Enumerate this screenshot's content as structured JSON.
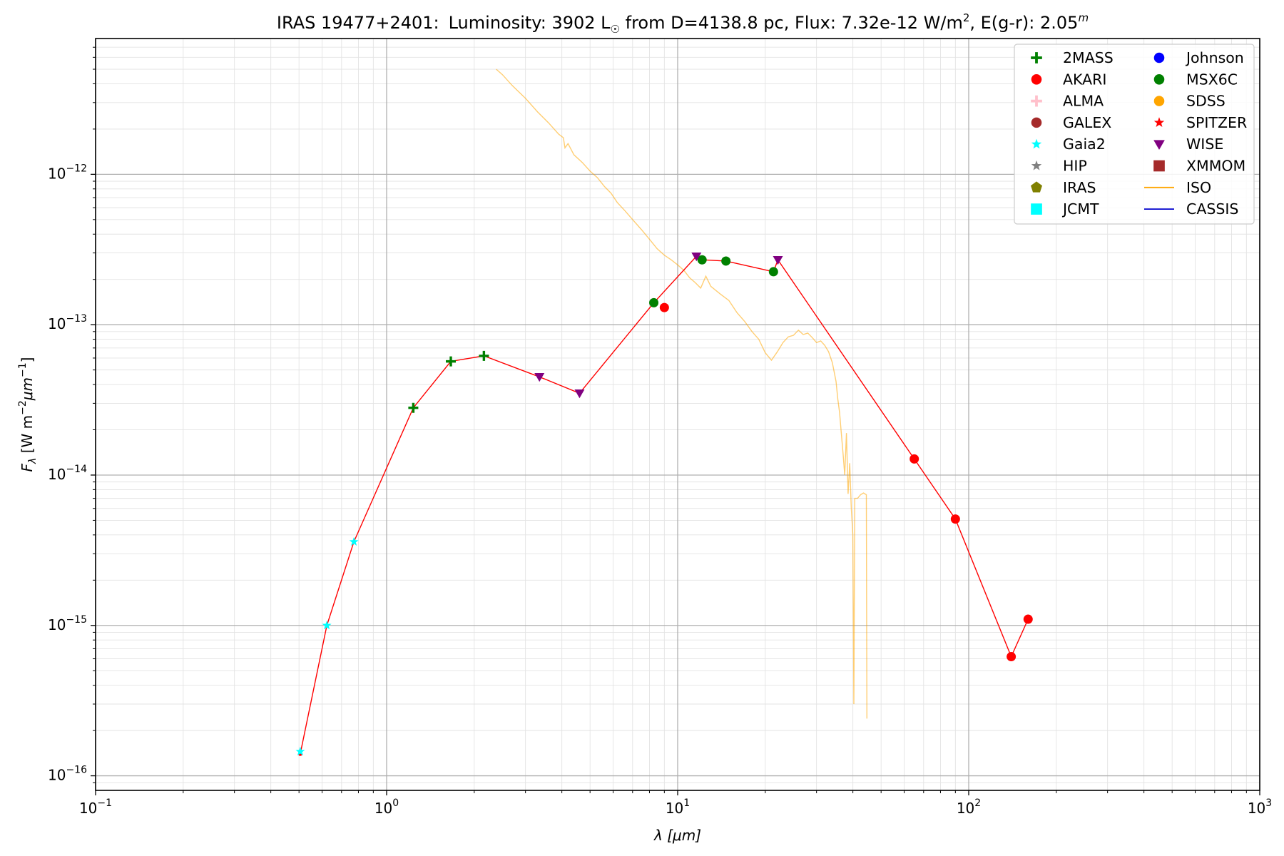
{
  "chart_data": {
    "type": "scatter",
    "title": {
      "object": "IRAS 19477+2401:",
      "lum_label": "Luminosity: 3902 L",
      "lum_symbol": "☉",
      "dist_flux": " from D=4138.8 pc, Flux: 7.32e-12 W/m",
      "flux_exp": "2",
      "reddening": ", E(g-r): 2.05",
      "red_exp": "m"
    },
    "xlabel": {
      "symbol": "λ",
      "unit": "[μm]"
    },
    "ylabel": {
      "symbol": "F",
      "sub": "λ",
      "unit_a": " [W m",
      "exp1": "−2",
      "unit_b": "μm",
      "exp2": "−1",
      "unit_c": "]"
    },
    "xscale": "log",
    "yscale": "log",
    "xlim": [
      0.1,
      1000
    ],
    "ylim": [
      8e-17,
      8e-12
    ],
    "grid": true,
    "legend_position": "top-right",
    "x_ticks": [
      {
        "value": 0.1,
        "base": "10",
        "exp": "−1"
      },
      {
        "value": 1,
        "base": "10",
        "exp": "0"
      },
      {
        "value": 10,
        "base": "10",
        "exp": "1"
      },
      {
        "value": 100,
        "base": "10",
        "exp": "2"
      },
      {
        "value": 1000,
        "base": "10",
        "exp": "3"
      }
    ],
    "y_ticks": [
      {
        "value": 1e-16,
        "base": "10",
        "exp": "−16"
      },
      {
        "value": 1e-15,
        "base": "10",
        "exp": "−15"
      },
      {
        "value": 1e-14,
        "base": "10",
        "exp": "−14"
      },
      {
        "value": 1e-13,
        "base": "10",
        "exp": "−13"
      },
      {
        "value": 1e-12,
        "base": "10",
        "exp": "−12"
      }
    ],
    "sed_line": {
      "color": "#ff0000",
      "points": [
        [
          0.505,
          1.4e-16
        ],
        [
          0.623,
          1e-15
        ],
        [
          0.772,
          3.6e-15
        ],
        [
          1.235,
          2.8e-14
        ],
        [
          1.662,
          5.7e-14
        ],
        [
          2.159,
          6.2e-14
        ],
        [
          3.35,
          4.5e-14
        ],
        [
          4.6,
          3.5e-14
        ],
        [
          8.28,
          1.4e-13
        ],
        [
          11.6,
          2.85e-13
        ],
        [
          12.13,
          2.7e-13
        ],
        [
          14.65,
          2.65e-13
        ],
        [
          21.34,
          2.25e-13
        ],
        [
          22.1,
          2.7e-13
        ],
        [
          65,
          1.28e-14
        ],
        [
          90,
          5.1e-15
        ],
        [
          140,
          6.2e-16
        ],
        [
          160,
          1.1e-15
        ]
      ]
    },
    "series": [
      {
        "name": "2MASS",
        "marker": "plus",
        "color": "#008000",
        "points": [
          [
            1.235,
            2.8e-14
          ],
          [
            1.662,
            5.7e-14
          ],
          [
            2.159,
            6.2e-14
          ]
        ]
      },
      {
        "name": "AKARI",
        "marker": "circle",
        "color": "#ff0000",
        "points": [
          [
            9,
            1.3e-13
          ],
          [
            65,
            1.28e-14
          ],
          [
            90,
            5.1e-15
          ],
          [
            140,
            6.2e-16
          ],
          [
            160,
            1.1e-15
          ]
        ]
      },
      {
        "name": "ALMA",
        "marker": "plus",
        "color": "#ffc0cb",
        "points": []
      },
      {
        "name": "GALEX",
        "marker": "circle",
        "color": "#a52a2a",
        "points": []
      },
      {
        "name": "Gaia2",
        "marker": "star",
        "color": "#00ffff",
        "points": [
          [
            0.505,
            1.45e-16
          ],
          [
            0.623,
            1e-15
          ],
          [
            0.772,
            3.6e-15
          ]
        ]
      },
      {
        "name": "HIP",
        "marker": "star",
        "color": "#808080",
        "points": []
      },
      {
        "name": "IRAS",
        "marker": "pentagon",
        "color": "#808000",
        "points": []
      },
      {
        "name": "JCMT",
        "marker": "square",
        "color": "#00ffff",
        "points": []
      },
      {
        "name": "Johnson",
        "marker": "circle",
        "color": "#0000ff",
        "points": []
      },
      {
        "name": "MSX6C",
        "marker": "circle",
        "color": "#008000",
        "points": [
          [
            8.28,
            1.4e-13
          ],
          [
            12.13,
            2.7e-13
          ],
          [
            14.65,
            2.65e-13
          ],
          [
            21.34,
            2.25e-13
          ]
        ]
      },
      {
        "name": "SDSS",
        "marker": "circle",
        "color": "#ffa500",
        "points": []
      },
      {
        "name": "SPITZER",
        "marker": "star",
        "color": "#ff0000",
        "points": []
      },
      {
        "name": "WISE",
        "marker": "triangle-down",
        "color": "#800080",
        "points": [
          [
            3.35,
            4.5e-14
          ],
          [
            4.6,
            3.5e-14
          ],
          [
            11.6,
            2.85e-13
          ],
          [
            22.1,
            2.7e-13
          ]
        ]
      },
      {
        "name": "XMMOM",
        "marker": "square",
        "color": "#a52a2a",
        "points": []
      },
      {
        "name": "ISO",
        "marker": "line",
        "color": "#ffa500",
        "points": []
      },
      {
        "name": "CASSIS",
        "marker": "line",
        "color": "#0000cd",
        "points": []
      }
    ],
    "iso_spectrum": {
      "color": "#ffa500",
      "points": [
        [
          2.38,
          5e-12
        ],
        [
          2.5,
          4.6e-12
        ],
        [
          2.7,
          3.9e-12
        ],
        [
          3.0,
          3.2e-12
        ],
        [
          3.3,
          2.6e-12
        ],
        [
          3.6,
          2.2e-12
        ],
        [
          3.9,
          1.85e-12
        ],
        [
          4.05,
          1.75e-12
        ],
        [
          4.1,
          1.5e-12
        ],
        [
          4.2,
          1.6e-12
        ],
        [
          4.4,
          1.35e-12
        ],
        [
          4.7,
          1.2e-12
        ],
        [
          5.0,
          1.05e-12
        ],
        [
          5.3,
          9.5e-13
        ],
        [
          5.6,
          8.3e-13
        ],
        [
          5.9,
          7.5e-13
        ],
        [
          6.2,
          6.5e-13
        ],
        [
          6.6,
          5.7e-13
        ],
        [
          7.0,
          5e-13
        ],
        [
          7.5,
          4.3e-13
        ],
        [
          8.0,
          3.7e-13
        ],
        [
          8.5,
          3.2e-13
        ],
        [
          9.0,
          2.9e-13
        ],
        [
          9.5,
          2.7e-13
        ],
        [
          10.0,
          2.5e-13
        ],
        [
          10.5,
          2.3e-13
        ],
        [
          11.0,
          2.05e-13
        ],
        [
          11.5,
          1.9e-13
        ],
        [
          12.0,
          1.75e-13
        ],
        [
          12.5,
          2.1e-13
        ],
        [
          13.0,
          1.8e-13
        ],
        [
          14.0,
          1.6e-13
        ],
        [
          15.0,
          1.45e-13
        ],
        [
          16.0,
          1.2e-13
        ],
        [
          17.0,
          1.05e-13
        ],
        [
          18.0,
          9e-14
        ],
        [
          19.0,
          8e-14
        ],
        [
          20.0,
          6.5e-14
        ],
        [
          21.0,
          5.8e-14
        ],
        [
          22.0,
          6.6e-14
        ],
        [
          23.0,
          7.6e-14
        ],
        [
          24.0,
          8.3e-14
        ],
        [
          25.0,
          8.5e-14
        ],
        [
          26.0,
          9.2e-14
        ],
        [
          27.0,
          8.6e-14
        ],
        [
          28.0,
          8.8e-14
        ],
        [
          29.0,
          8.2e-14
        ],
        [
          30.0,
          7.6e-14
        ],
        [
          31.0,
          7.8e-14
        ],
        [
          32.0,
          7.3e-14
        ],
        [
          33.0,
          6.6e-14
        ],
        [
          34.0,
          5.6e-14
        ],
        [
          35.0,
          4.2e-14
        ],
        [
          35.5,
          3.2e-14
        ],
        [
          36.0,
          2.6e-14
        ],
        [
          36.5,
          1.9e-14
        ],
        [
          37.0,
          1.4e-14
        ],
        [
          37.5,
          1e-14
        ],
        [
          38.0,
          1.9e-14
        ],
        [
          38.5,
          7.5e-15
        ],
        [
          39.0,
          1.2e-14
        ],
        [
          39.5,
          6e-15
        ],
        [
          40.0,
          4e-15
        ],
        [
          40.3,
          3e-16
        ],
        [
          40.6,
          7e-15
        ],
        [
          41.5,
          7e-15
        ],
        [
          42.5,
          7.4e-15
        ],
        [
          43.5,
          7.6e-15
        ],
        [
          44.5,
          7.4e-15
        ],
        [
          44.7,
          2.4e-16
        ]
      ]
    }
  }
}
